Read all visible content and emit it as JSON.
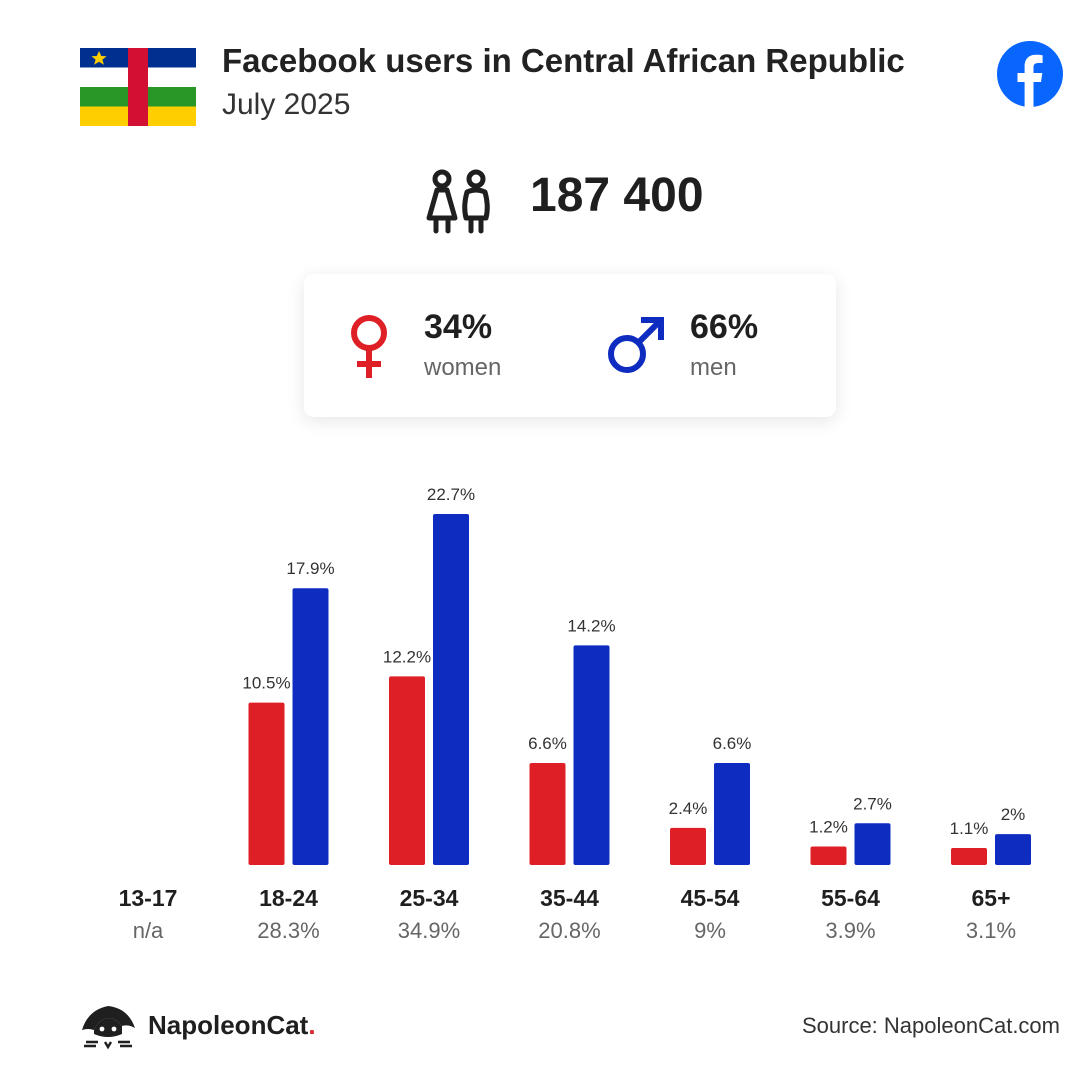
{
  "header": {
    "title": "Facebook users in Central African Republic",
    "subtitle": "July 2025",
    "flag_icon": "central-african-republic-flag",
    "platform_icon": "facebook-icon"
  },
  "summary": {
    "total_users": "187 400",
    "users_icon": "people-icon",
    "women": {
      "percent": "34%",
      "label": "women",
      "icon": "female-symbol-icon"
    },
    "men": {
      "percent": "66%",
      "label": "men",
      "icon": "male-symbol-icon"
    }
  },
  "colors": {
    "women": "#df1f26",
    "men": "#0f2cc0",
    "text": "#1f1f1f",
    "muted": "#666666"
  },
  "chart_data": {
    "type": "bar",
    "categories": [
      "13-17",
      "18-24",
      "25-34",
      "35-44",
      "45-54",
      "55-64",
      "65+"
    ],
    "category_totals": [
      "n/a",
      "28.3%",
      "34.9%",
      "20.8%",
      "9%",
      "3.9%",
      "3.1%"
    ],
    "series": [
      {
        "key": "women",
        "values": [
          null,
          10.5,
          12.2,
          6.6,
          2.4,
          1.2,
          1.1
        ],
        "labels": [
          "",
          "10.5%",
          "12.2%",
          "6.6%",
          "2.4%",
          "1.2%",
          "1.1%"
        ]
      },
      {
        "key": "men",
        "values": [
          null,
          17.9,
          22.7,
          14.2,
          6.6,
          2.7,
          2
        ],
        "labels": [
          "",
          "17.9%",
          "22.7%",
          "14.2%",
          "6.6%",
          "2.7%",
          "2%"
        ]
      }
    ],
    "ylim": [
      0,
      22.7
    ],
    "grid": false,
    "legend": "none"
  },
  "footer": {
    "brand": "NapoleonCat",
    "brand_dot": ".",
    "brand_icon": "napoleoncat-logo",
    "source": "Source: NapoleonCat.com"
  }
}
